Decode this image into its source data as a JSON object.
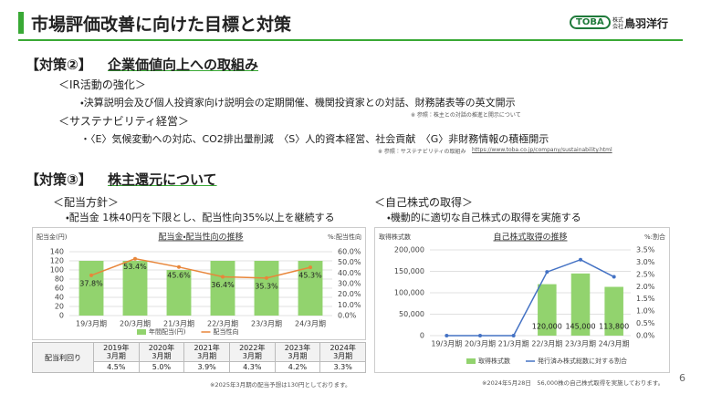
{
  "header": {
    "title": "市場評価改善に向けた目標と対策",
    "logo": "TOBA",
    "logo_sub": "株式会社",
    "company": "鳥羽洋行"
  },
  "section2": {
    "tag": "【対策②】",
    "heading": "企業価値向上への取組み",
    "ir_heading": "＜IR活動の強化＞",
    "ir_text": "・決算説明会及び個人投資家向け説明会の定期開催、機関投資家との対話、財務諸表等の英文開示",
    "ir_note": "※ 参照：株主との対話の推進と開示について",
    "sus_heading": "＜サステナビリティ経営＞",
    "sus_text": "・〈E〉気候変動への対応、CO2排出量削減　〈S〉人的資本経営、社会貢献　〈G〉非財務情報の積極開示",
    "sus_note": "※ 参照：サステナビリティの取組み",
    "sus_link": "https://www.toba.co.jp/company/sustainability.html"
  },
  "section3": {
    "tag": "【対策③】",
    "heading": "株主還元について",
    "dividend_heading": "＜配当方針＞",
    "dividend_text": "・配当金 1株40円を下限とし、配当性向35%以上を継続する",
    "buyback_heading": "＜自己株式の取得＞",
    "buyback_text": "・機動的に適切な自己株式の取得を実施する"
  },
  "chart_data": [
    {
      "type": "bar-line",
      "title": "配当金・配当性向の推移",
      "y_label": "配当金(円)",
      "y2_label": "%:配当性向",
      "categories": [
        "19/3月期",
        "20/3月期",
        "21/3月期",
        "22/3月期",
        "23/3月期",
        "24/3月期"
      ],
      "series": [
        {
          "name": "年間配当(円)",
          "type": "bar",
          "color": "#92d36e",
          "values": [
            120,
            120,
            100,
            120,
            120,
            120
          ]
        },
        {
          "name": "配当性向",
          "type": "line",
          "axis": "y2",
          "color": "#e8863a",
          "values": [
            37.8,
            53.4,
            45.6,
            36.4,
            35.3,
            45.3
          ],
          "value_labels": [
            "37.8%",
            "53.4%",
            "45.6%",
            "36.4%",
            "35.3%",
            "45.3%"
          ]
        }
      ],
      "ylim": [
        0,
        140
      ],
      "yticks": [
        0,
        20,
        40,
        60,
        80,
        100,
        120,
        140
      ],
      "y2lim": [
        0,
        60
      ],
      "y2ticks": [
        {
          "value": 0,
          "label": "0.0%"
        },
        {
          "value": 10,
          "label": "10.0%"
        },
        {
          "value": 20,
          "label": "20.0%"
        },
        {
          "value": 30,
          "label": "30.0%"
        },
        {
          "value": 40,
          "label": "40.0%"
        },
        {
          "value": 50,
          "label": "50.0%"
        },
        {
          "value": 60,
          "label": "60.0%"
        }
      ],
      "grid": true
    },
    {
      "type": "bar-line",
      "title": "自己株式取得の推移",
      "y_label": "取得株式数",
      "y2_label": "%:割合",
      "categories": [
        "19/3月期",
        "20/3月期",
        "21/3月期",
        "22/3月期",
        "23/3月期",
        "24/3月期"
      ],
      "series": [
        {
          "name": "取得株式数",
          "type": "bar",
          "color": "#92d36e",
          "values": [
            0,
            0,
            0,
            120000,
            145000,
            113800
          ],
          "value_labels": [
            null,
            null,
            null,
            "120,000",
            "145,000",
            "113,800"
          ]
        },
        {
          "name": "発行済み株式総数に対する割合",
          "type": "line",
          "axis": "y2",
          "color": "#4472c4",
          "values": [
            0,
            0,
            0,
            2.6,
            3.1,
            2.4
          ]
        }
      ],
      "ylim": [
        0,
        200000
      ],
      "yticks": [
        0,
        {
          "value": 50000,
          "label": "50,000"
        },
        {
          "value": 100000,
          "label": "100,000"
        },
        {
          "value": 150000,
          "label": "150,000"
        },
        {
          "value": 200000,
          "label": "200,000"
        }
      ],
      "y2lim": [
        0,
        3.5
      ],
      "y2ticks": [
        {
          "value": 0,
          "label": "0.0%"
        },
        {
          "value": 0.5,
          "label": "0.5%"
        },
        {
          "value": 1,
          "label": "1.0%"
        },
        {
          "value": 1.5,
          "label": "1.5%"
        },
        {
          "value": 2,
          "label": "2.0%"
        },
        {
          "value": 2.5,
          "label": "2.5%"
        },
        {
          "value": 3,
          "label": "3.0%"
        },
        {
          "value": 3.5,
          "label": "3.5%"
        }
      ],
      "grid": true
    }
  ],
  "table": {
    "row_header": "配当利回り",
    "columns": [
      [
        "2019年",
        "3月期"
      ],
      [
        "2020年",
        "3月期"
      ],
      [
        "2021年",
        "3月期"
      ],
      [
        "2022年",
        "3月期"
      ],
      [
        "2023年",
        "3月期"
      ],
      [
        "2024年",
        "3月期"
      ]
    ],
    "values": [
      "4.5%",
      "5.0%",
      "3.9%",
      "4.3%",
      "4.2%",
      "3.3%"
    ]
  },
  "notes": {
    "dividend": "※2025年3月期の配当予想は130円としております。",
    "buyback": "※2024年5月28日　56,000株の自己株式取得を実施しております。"
  },
  "page_number": "6"
}
